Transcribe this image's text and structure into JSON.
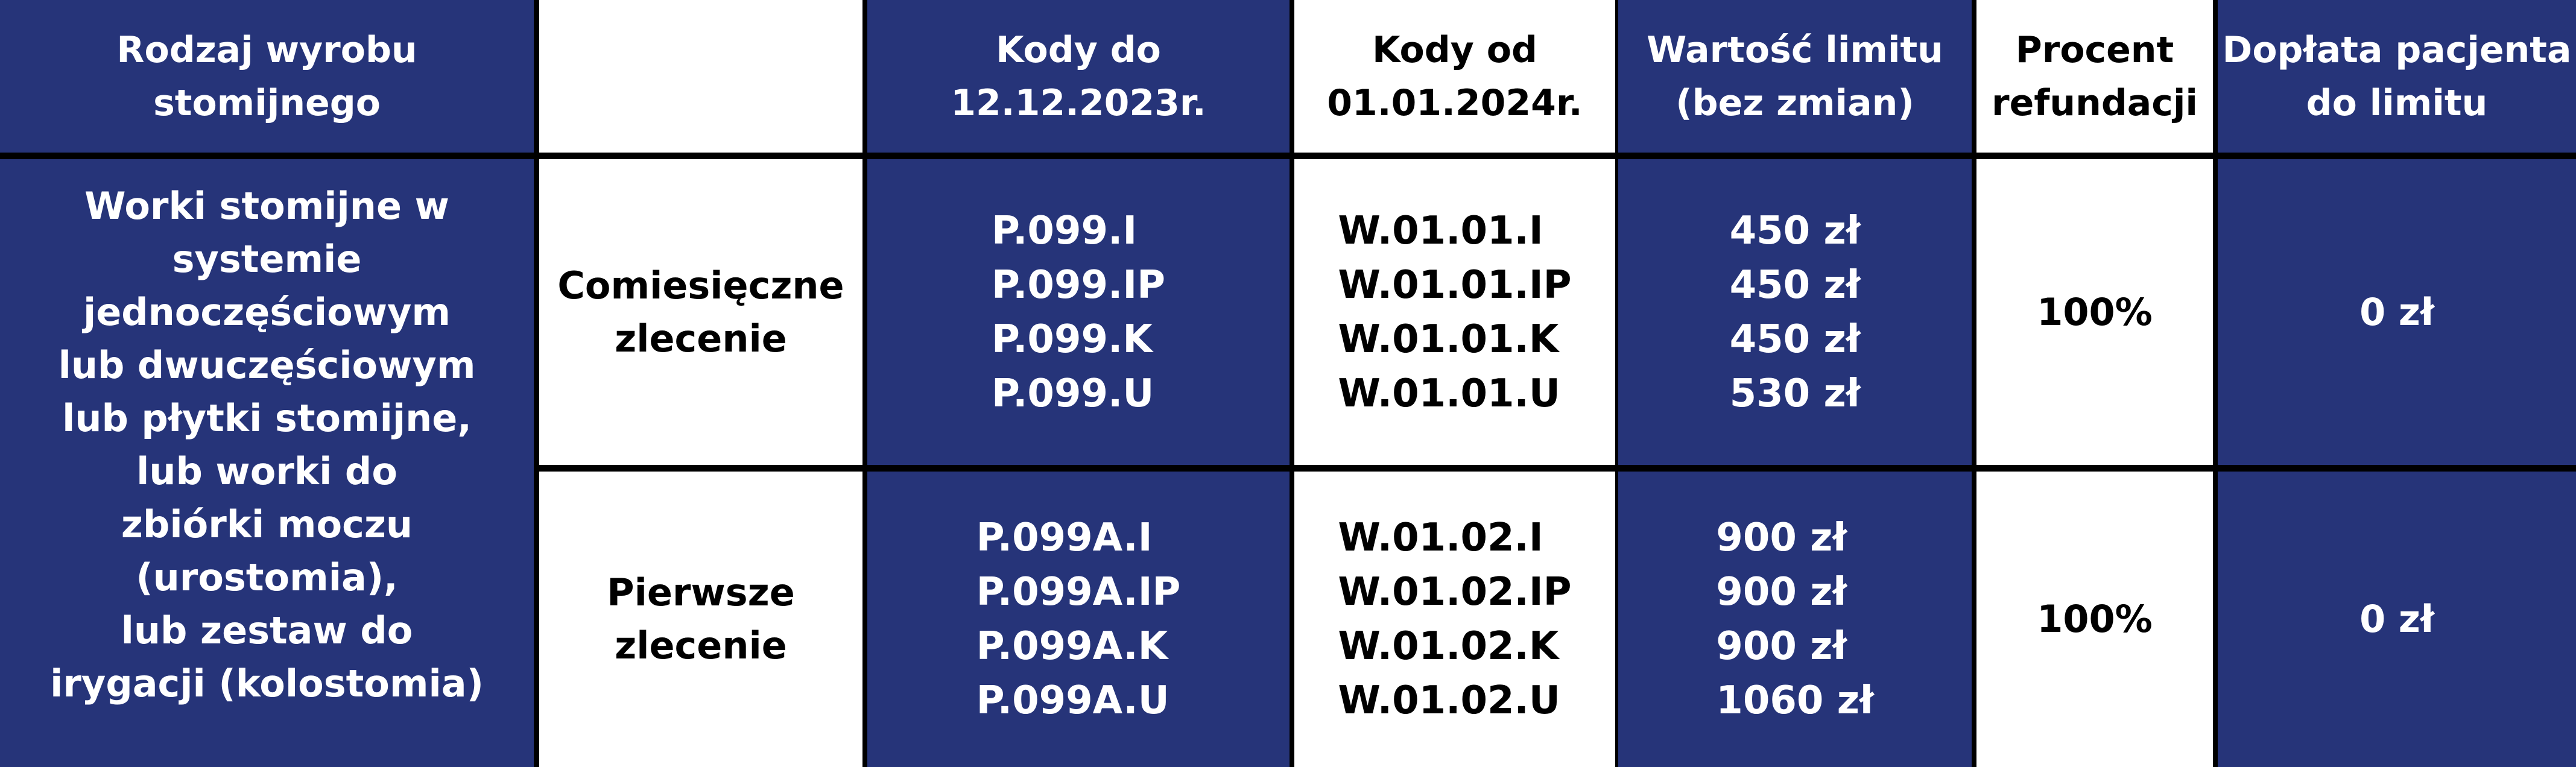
{
  "header": {
    "col1": [
      "Rodzaj wyrobu",
      "stomijnego"
    ],
    "col2": "",
    "col3": [
      "Kody do",
      "12.12.2023r."
    ],
    "col4": [
      "Kody od",
      "01.01.2024r."
    ],
    "col5": [
      "Wartość limitu",
      "(bez zmian)"
    ],
    "col6": [
      "Procent",
      "refundacji"
    ],
    "col7": [
      "Dopłata pacjenta",
      "do limitu"
    ]
  },
  "product": [
    "Worki stomijne w systemie",
    "jednoczęściowym",
    "lub dwuczęściowym",
    "lub płytki stomijne,",
    "lub worki do",
    "zbiórki moczu (urostomia),",
    "lub zestaw do",
    "irygacji (kolostomia)"
  ],
  "rows": [
    {
      "type": [
        "Comiesięczne",
        "zlecenie"
      ],
      "old_codes": [
        "P.099.I",
        "P.099.IP",
        "P.099.K",
        "P.099.U"
      ],
      "new_codes": [
        "W.01.01.I",
        "W.01.01.IP",
        "W.01.01.K",
        "W.01.01.U"
      ],
      "limits": [
        "450 zł",
        "450 zł",
        "450 zł",
        "530 zł"
      ],
      "percent": "100%",
      "copay": "0 zł"
    },
    {
      "type": [
        "Pierwsze",
        "zlecenie"
      ],
      "old_codes": [
        "P.099A.I",
        "P.099A.IP",
        "P.099A.K",
        "P.099A.U"
      ],
      "new_codes": [
        "W.01.02.I",
        "W.01.02.IP",
        "W.01.02.K",
        "W.01.02.U"
      ],
      "limits": [
        "900 zł",
        "900 zł",
        "900 zł",
        "1060 zł"
      ],
      "percent": "100%",
      "copay": "0 zł"
    }
  ],
  "colors": {
    "blue": "#263479",
    "white": "#ffffff",
    "border": "#000000"
  }
}
